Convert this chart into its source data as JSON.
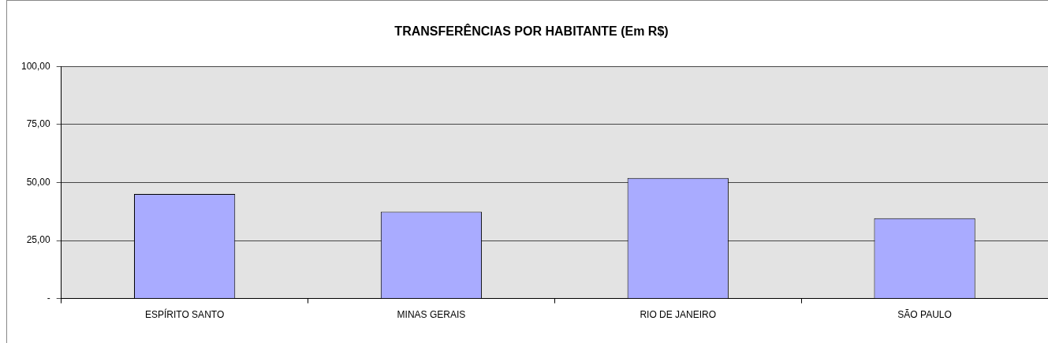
{
  "chart_data": {
    "type": "bar",
    "title": "TRANSFERÊNCIAS POR HABITANTE (Em R$)",
    "categories": [
      "ESPÍRITO SANTO",
      "MINAS GERAIS",
      "RIO DE JANEIRO",
      "SÃO PAULO"
    ],
    "values": [
      45.0,
      37.4,
      51.9,
      34.6
    ],
    "color": "#a9abff",
    "ylim": [
      0,
      100
    ],
    "yticks": [
      {
        "value": 0,
        "label": "-"
      },
      {
        "value": 25,
        "label": "25,00"
      },
      {
        "value": 50,
        "label": "50,00"
      },
      {
        "value": 75,
        "label": "75,00"
      },
      {
        "value": 100,
        "label": "100,00"
      }
    ],
    "grid": "y",
    "legend": false
  }
}
